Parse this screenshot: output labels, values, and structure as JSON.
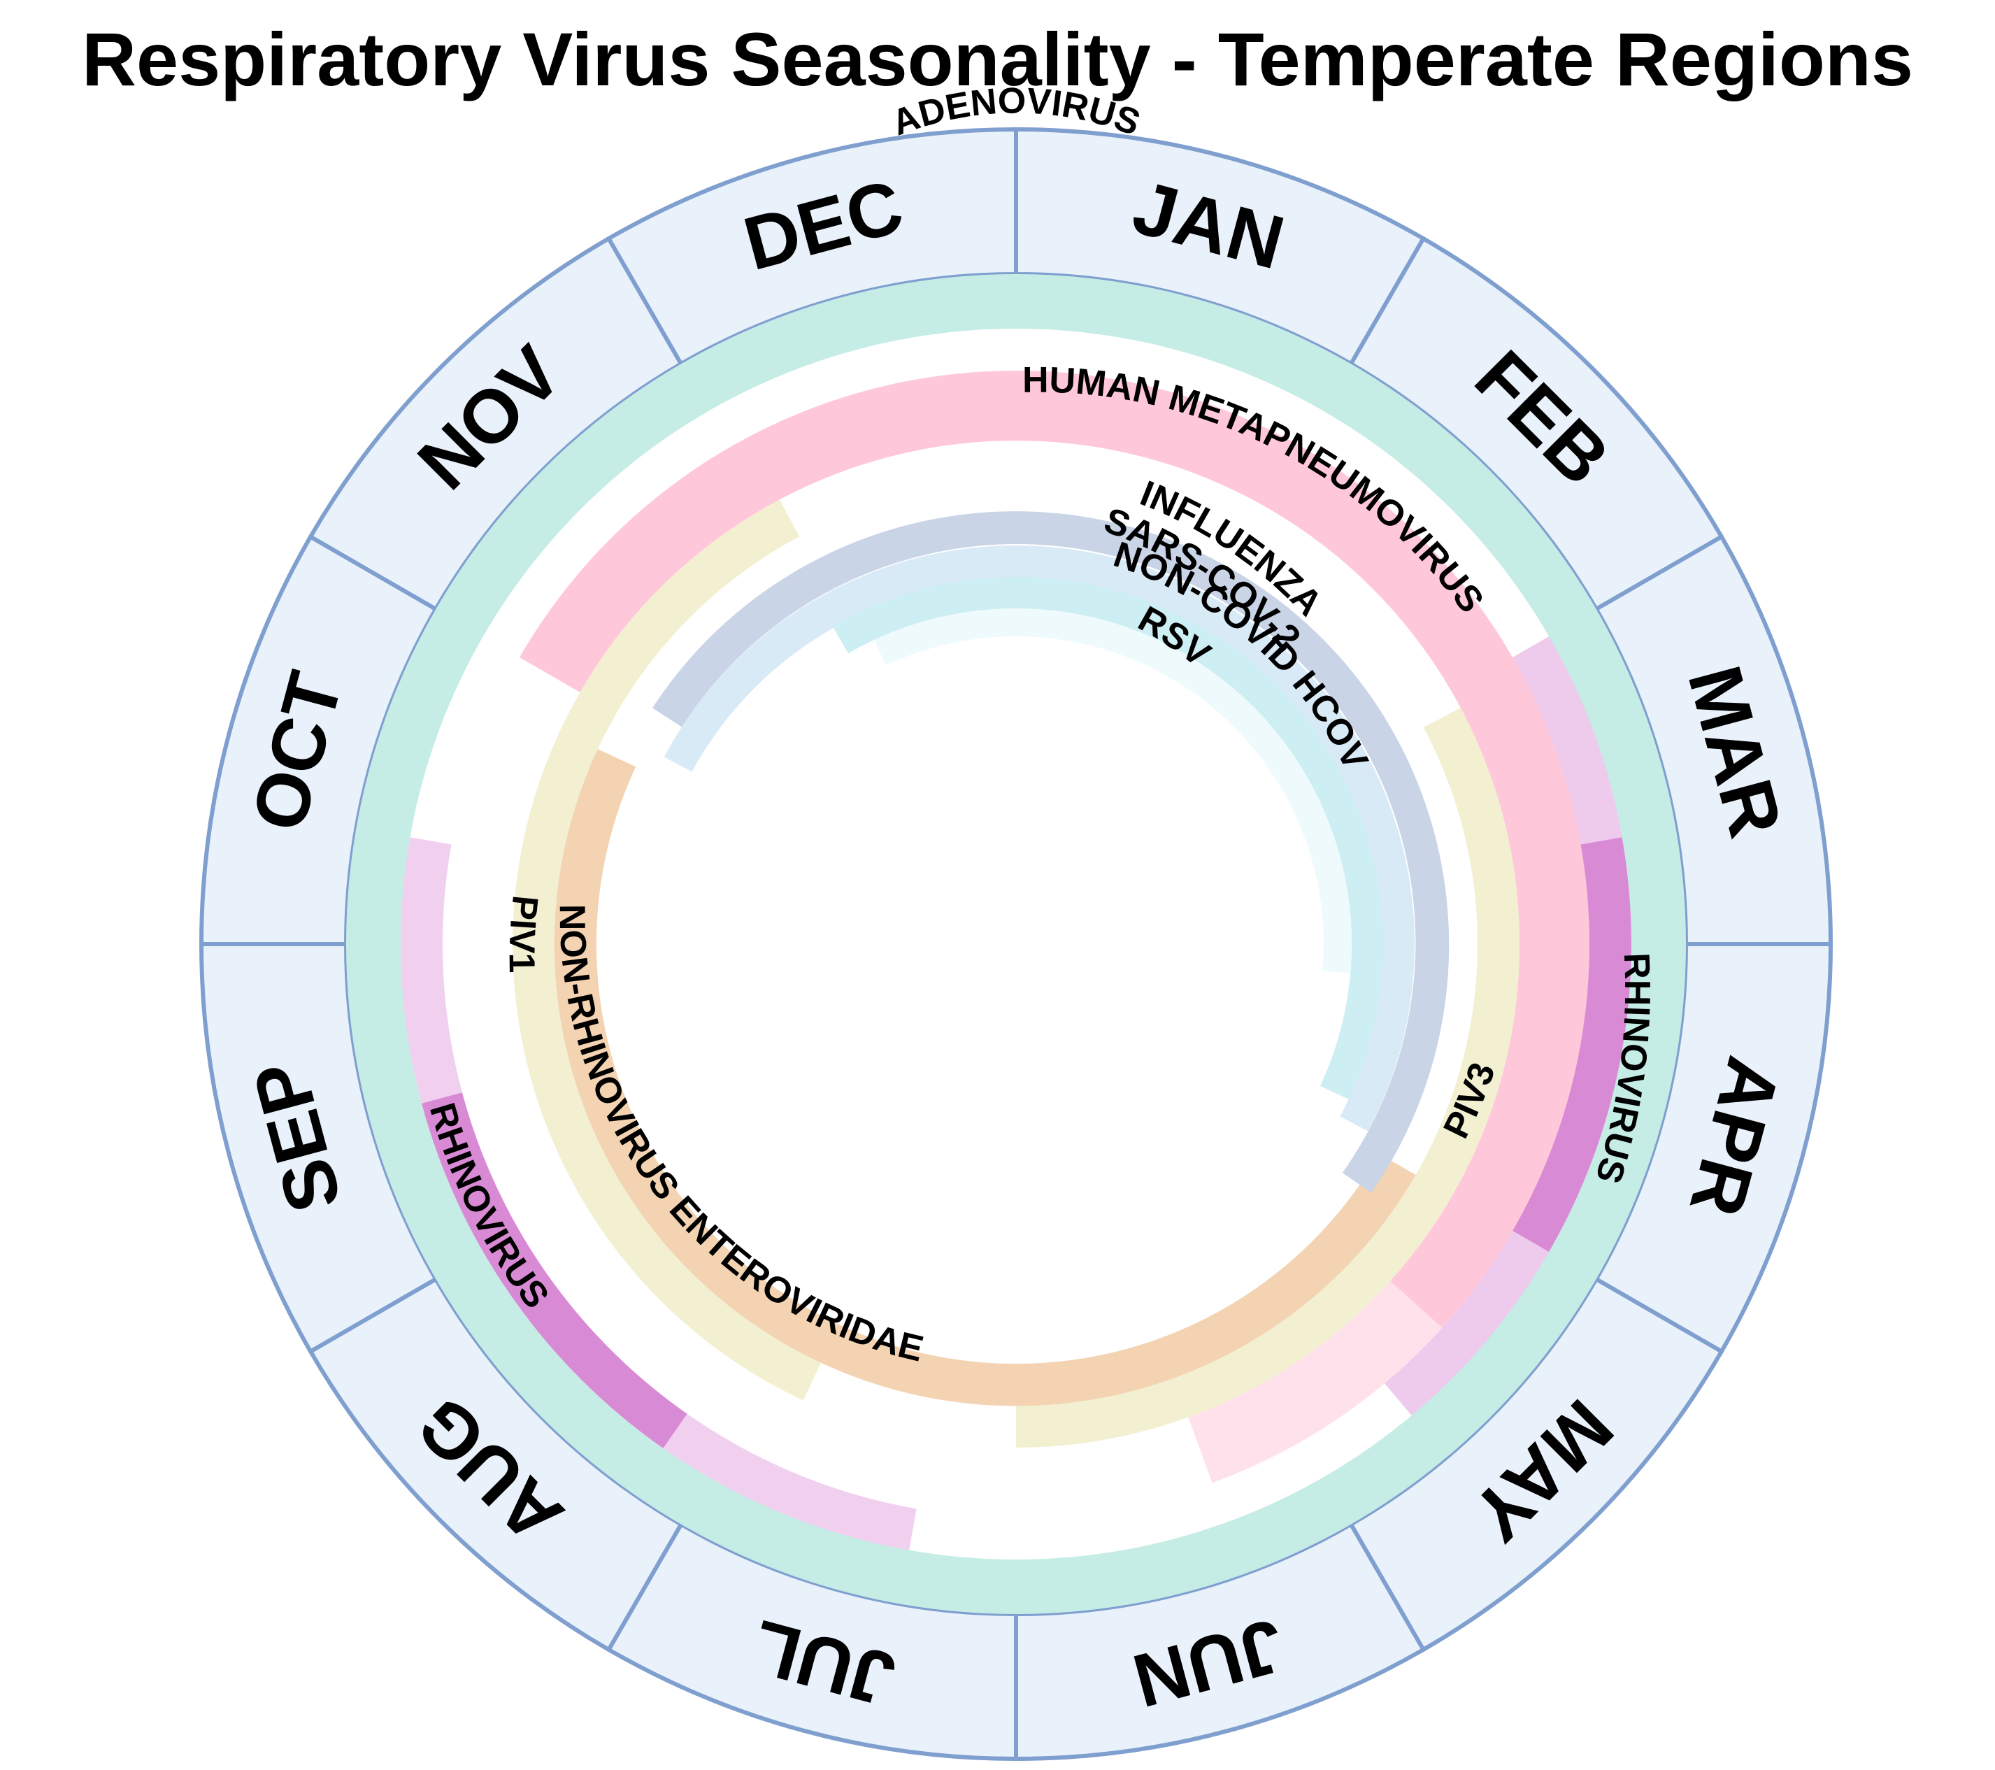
{
  "title": "Respiratory Virus Seasonality - Temperate Regions",
  "months": [
    "JAN",
    "FEB",
    "MAR",
    "APR",
    "MAY",
    "JUN",
    "JUL",
    "AUG",
    "SEP",
    "OCT",
    "NOV",
    "DEC"
  ],
  "colors": {
    "month_fill": "#e9f1fb",
    "month_stroke": "#7f9fcf",
    "adenovirus": "#c6ece6",
    "hmpv": "#ffc8da",
    "rhinovirus": "#d98ad4",
    "piv": "#f3f0d2",
    "nrev": "#f3d3b1",
    "influenza": "#c9d4e6",
    "sarscov2": "#d9eaf7",
    "hcov": "#cdeef2",
    "rsv": "#eefafc"
  },
  "viruses": [
    {
      "key": "adenovirus",
      "label": "ADENOVIRUS",
      "season": "year-round"
    },
    {
      "key": "hmpv",
      "label": "HUMAN METAPNEUMOVIRUS",
      "season": "late winter - spring"
    },
    {
      "key": "rhinovirus_spring",
      "label": "RHINOVIRUS",
      "season": "spring"
    },
    {
      "key": "rhinovirus_fall",
      "label": "RHINOVIRUS",
      "season": "late summer - autumn"
    },
    {
      "key": "piv1",
      "label": "PIV1",
      "season": "autumn"
    },
    {
      "key": "piv3",
      "label": "PIV3",
      "season": "spring - summer"
    },
    {
      "key": "nrev",
      "label": "NON-RHINOVIRUS ENTEROVIRIDAE",
      "season": "summer - autumn"
    },
    {
      "key": "influenza",
      "label": "INFLUENZA",
      "season": "winter"
    },
    {
      "key": "sarscov2",
      "label": "SARS-COV-2",
      "season": "winter"
    },
    {
      "key": "hcov",
      "label": "NON-COVID HCOV",
      "season": "winter"
    },
    {
      "key": "rsv",
      "label": "RSV",
      "season": "winter"
    }
  ]
}
